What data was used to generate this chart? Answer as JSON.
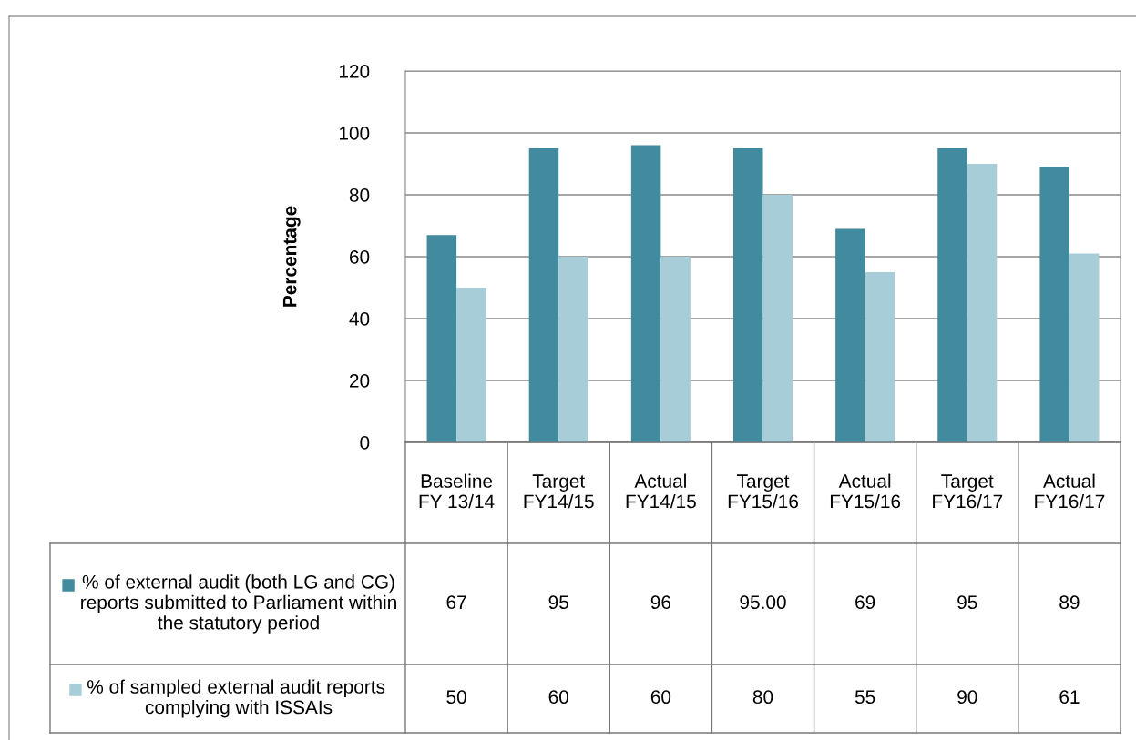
{
  "chart_data": {
    "type": "bar",
    "ylabel": "Percentage",
    "categories": [
      "Baseline FY 13/14",
      "Target FY14/15",
      "Actual FY14/15",
      "Target FY15/16",
      "Actual FY15/16",
      "Target FY16/17",
      "Actual FY16/17"
    ],
    "series": [
      {
        "name": "% of external audit (both LG and CG) reports submitted to Parliament within the statutory period",
        "color": "#428a9e",
        "values": [
          67,
          95,
          96,
          95,
          69,
          95,
          89
        ],
        "value_labels": [
          "67",
          "95",
          "96",
          "95.00",
          "69",
          "95",
          "89"
        ]
      },
      {
        "name": "% of sampled external audit reports  complying with ISSAIs",
        "color": "#a7cdd8",
        "values": [
          50,
          60,
          60,
          80,
          55,
          90,
          61
        ],
        "value_labels": [
          "50",
          "60",
          "60",
          "80",
          "55",
          "90",
          "61"
        ]
      }
    ],
    "ylim": [
      0,
      120
    ],
    "yticks": [
      0,
      20,
      40,
      60,
      80,
      100,
      120
    ],
    "grid": "y",
    "legend": "bottom left"
  }
}
